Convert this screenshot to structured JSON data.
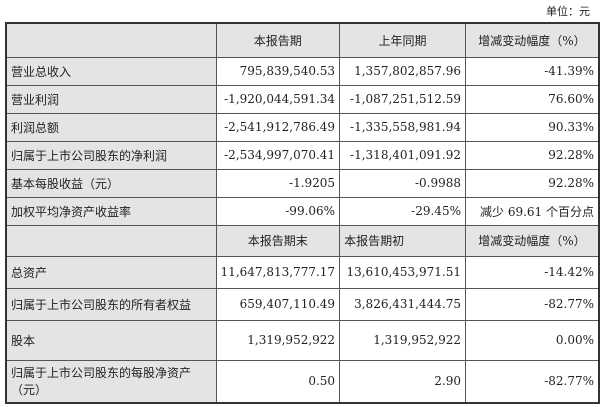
{
  "unit": "单位：元",
  "header1": [
    "",
    "本报告期",
    "上年同期",
    "增减变动幅度（%）"
  ],
  "rows1": [
    [
      "营业总收入",
      "795,839,540.53",
      "1,357,802,857.96",
      "-41.39%"
    ],
    [
      "营业利润",
      "-1,920,044,591.34",
      "-1,087,251,512.59",
      "76.60%"
    ],
    [
      "利润总额",
      "-2,541,912,786.49",
      "-1,335,558,981.94",
      "90.33%"
    ],
    [
      "归属于上市公司股东的净利润",
      "-2,534,997,070.41",
      "-1,318,401,091.92",
      "92.28%"
    ],
    [
      "基本每股收益（元）",
      "-1.9205",
      "-0.9988",
      "92.28%"
    ],
    [
      "加权平均净资产收益率",
      "-99.06%",
      "-29.45%",
      "减少 69.61 个百分点"
    ]
  ],
  "header2": [
    "",
    "本报告期末",
    "本报告期初",
    "增减变动幅度（%）"
  ],
  "rows2": [
    [
      "总资产",
      "11,647,813,777.17",
      "13,610,453,971.51",
      "-14.42%"
    ],
    [
      "归属于上市公司股东的所有者权益",
      "659,407,110.49",
      "3,826,431,444.75",
      "-82.77%"
    ],
    [
      "股本",
      "1,319,952,922",
      "1,319,952,922",
      "0.00%"
    ],
    [
      "归属于上市公司股东的每股净资产（元）",
      "0.50",
      "2.90",
      "-82.77%"
    ]
  ]
}
